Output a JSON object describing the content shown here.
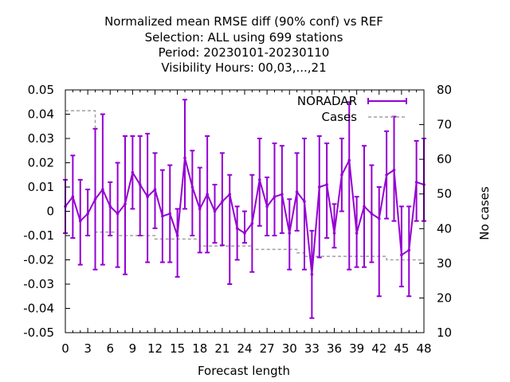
{
  "chart_data": {
    "type": "line",
    "title": [
      "Normalized mean RMSE diff (90% conf) vs REF",
      "Selection: ALL using   699 stations",
      "Period: 20230101-20230110",
      "Visibility   Hours:  00,03,...,21"
    ],
    "xlabel": "Forecast length",
    "ylabel": "",
    "y2label": "No cases",
    "xlim": [
      0,
      48
    ],
    "ylim": [
      -0.05,
      0.05
    ],
    "y2lim": [
      10,
      80
    ],
    "xticks": [
      0,
      3,
      6,
      9,
      12,
      15,
      18,
      21,
      24,
      27,
      30,
      33,
      36,
      39,
      42,
      45,
      48
    ],
    "xtick_labels": [
      "0",
      "3",
      "6",
      "9",
      "12",
      "15",
      "18",
      "21",
      "24",
      "27",
      "30",
      "33",
      "36",
      "39",
      "42",
      "45",
      "48"
    ],
    "yticks": [
      -0.05,
      -0.04,
      -0.03,
      -0.02,
      -0.01,
      0,
      0.01,
      0.02,
      0.03,
      0.04,
      0.05
    ],
    "ytick_labels": [
      "-0.05",
      "-0.04",
      "-0.03",
      "-0.02",
      "-0.01",
      "0",
      "0.01",
      "0.02",
      "0.03",
      "0.04",
      "0.05"
    ],
    "y2ticks": [
      10,
      20,
      30,
      40,
      50,
      60,
      70,
      80
    ],
    "y2tick_labels": [
      "10",
      "20",
      "30",
      "40",
      "50",
      "60",
      "70",
      "80"
    ],
    "grid": false,
    "legend_position": "top-right",
    "series": [
      {
        "name": "NORADAR",
        "color": "#9400d3",
        "axis": "y",
        "style": "linespoints-errorbars",
        "x": [
          0,
          1,
          2,
          3,
          4,
          5,
          6,
          7,
          8,
          9,
          10,
          11,
          12,
          13,
          14,
          15,
          16,
          17,
          18,
          19,
          20,
          21,
          22,
          23,
          24,
          25,
          26,
          27,
          28,
          29,
          30,
          31,
          32,
          33,
          34,
          35,
          36,
          37,
          38,
          39,
          40,
          41,
          42,
          43,
          44,
          45,
          46,
          47,
          48
        ],
        "values": [
          0.002,
          0.006,
          -0.004,
          -0.001,
          0.005,
          0.009,
          0.002,
          -0.001,
          0.003,
          0.016,
          0.011,
          0.006,
          0.009,
          -0.002,
          -0.001,
          -0.01,
          0.022,
          0.01,
          0.001,
          0.007,
          0.0,
          0.004,
          0.007,
          -0.007,
          -0.009,
          -0.005,
          0.013,
          0.002,
          0.006,
          0.007,
          -0.009,
          0.008,
          0.004,
          -0.026,
          0.01,
          0.011,
          -0.009,
          0.015,
          0.021,
          -0.009,
          0.002,
          -0.001,
          -0.003,
          0.015,
          0.017,
          -0.018,
          -0.016,
          0.012,
          0.011
        ],
        "lower": [
          -0.009,
          -0.011,
          -0.022,
          -0.01,
          -0.024,
          -0.022,
          -0.01,
          -0.023,
          -0.026,
          0.001,
          -0.01,
          -0.021,
          -0.007,
          -0.021,
          -0.021,
          -0.027,
          0.001,
          -0.01,
          -0.017,
          -0.017,
          -0.013,
          -0.014,
          -0.03,
          -0.02,
          -0.013,
          -0.025,
          -0.006,
          -0.01,
          -0.01,
          -0.009,
          -0.024,
          -0.008,
          -0.024,
          -0.044,
          -0.019,
          -0.011,
          -0.015,
          0.0,
          -0.024,
          -0.023,
          -0.023,
          -0.021,
          -0.035,
          -0.003,
          -0.004,
          -0.031,
          -0.035,
          -0.004,
          -0.004
        ],
        "upper": [
          0.013,
          0.023,
          0.013,
          0.009,
          0.034,
          0.04,
          0.012,
          0.02,
          0.031,
          0.031,
          0.031,
          0.032,
          0.024,
          0.017,
          0.019,
          0.001,
          0.046,
          0.025,
          0.018,
          0.031,
          0.011,
          0.024,
          0.015,
          0.002,
          0.0,
          0.015,
          0.03,
          0.014,
          0.028,
          0.027,
          0.005,
          0.024,
          0.03,
          -0.008,
          0.031,
          0.028,
          0.003,
          0.03,
          0.045,
          0.006,
          0.027,
          0.019,
          0.01,
          0.033,
          0.039,
          0.002,
          0.002,
          0.029,
          0.03
        ]
      },
      {
        "name": "Cases",
        "color": "#a0a0a0",
        "axis": "y2",
        "style": "dashed-steps",
        "x": [
          0,
          1,
          2,
          3,
          4,
          5,
          6,
          7,
          8,
          9,
          10,
          11,
          12,
          13,
          14,
          15,
          16,
          17,
          18,
          19,
          20,
          21,
          22,
          23,
          24,
          25,
          26,
          27,
          28,
          29,
          30,
          31,
          32,
          33,
          34,
          35,
          36,
          37,
          38,
          39,
          40,
          41,
          42,
          43,
          44,
          45,
          46,
          47,
          48
        ],
        "values": [
          74,
          74,
          74,
          74,
          39,
          39,
          39,
          38,
          38,
          38,
          38,
          38,
          37,
          37,
          37,
          37,
          37,
          37,
          35,
          35,
          35,
          35,
          35,
          35,
          35,
          34,
          34,
          34,
          34,
          34,
          34,
          33,
          32,
          32,
          32,
          32,
          32,
          32,
          32,
          32,
          32,
          32,
          32,
          31,
          31,
          31,
          31,
          31,
          31
        ]
      }
    ]
  }
}
